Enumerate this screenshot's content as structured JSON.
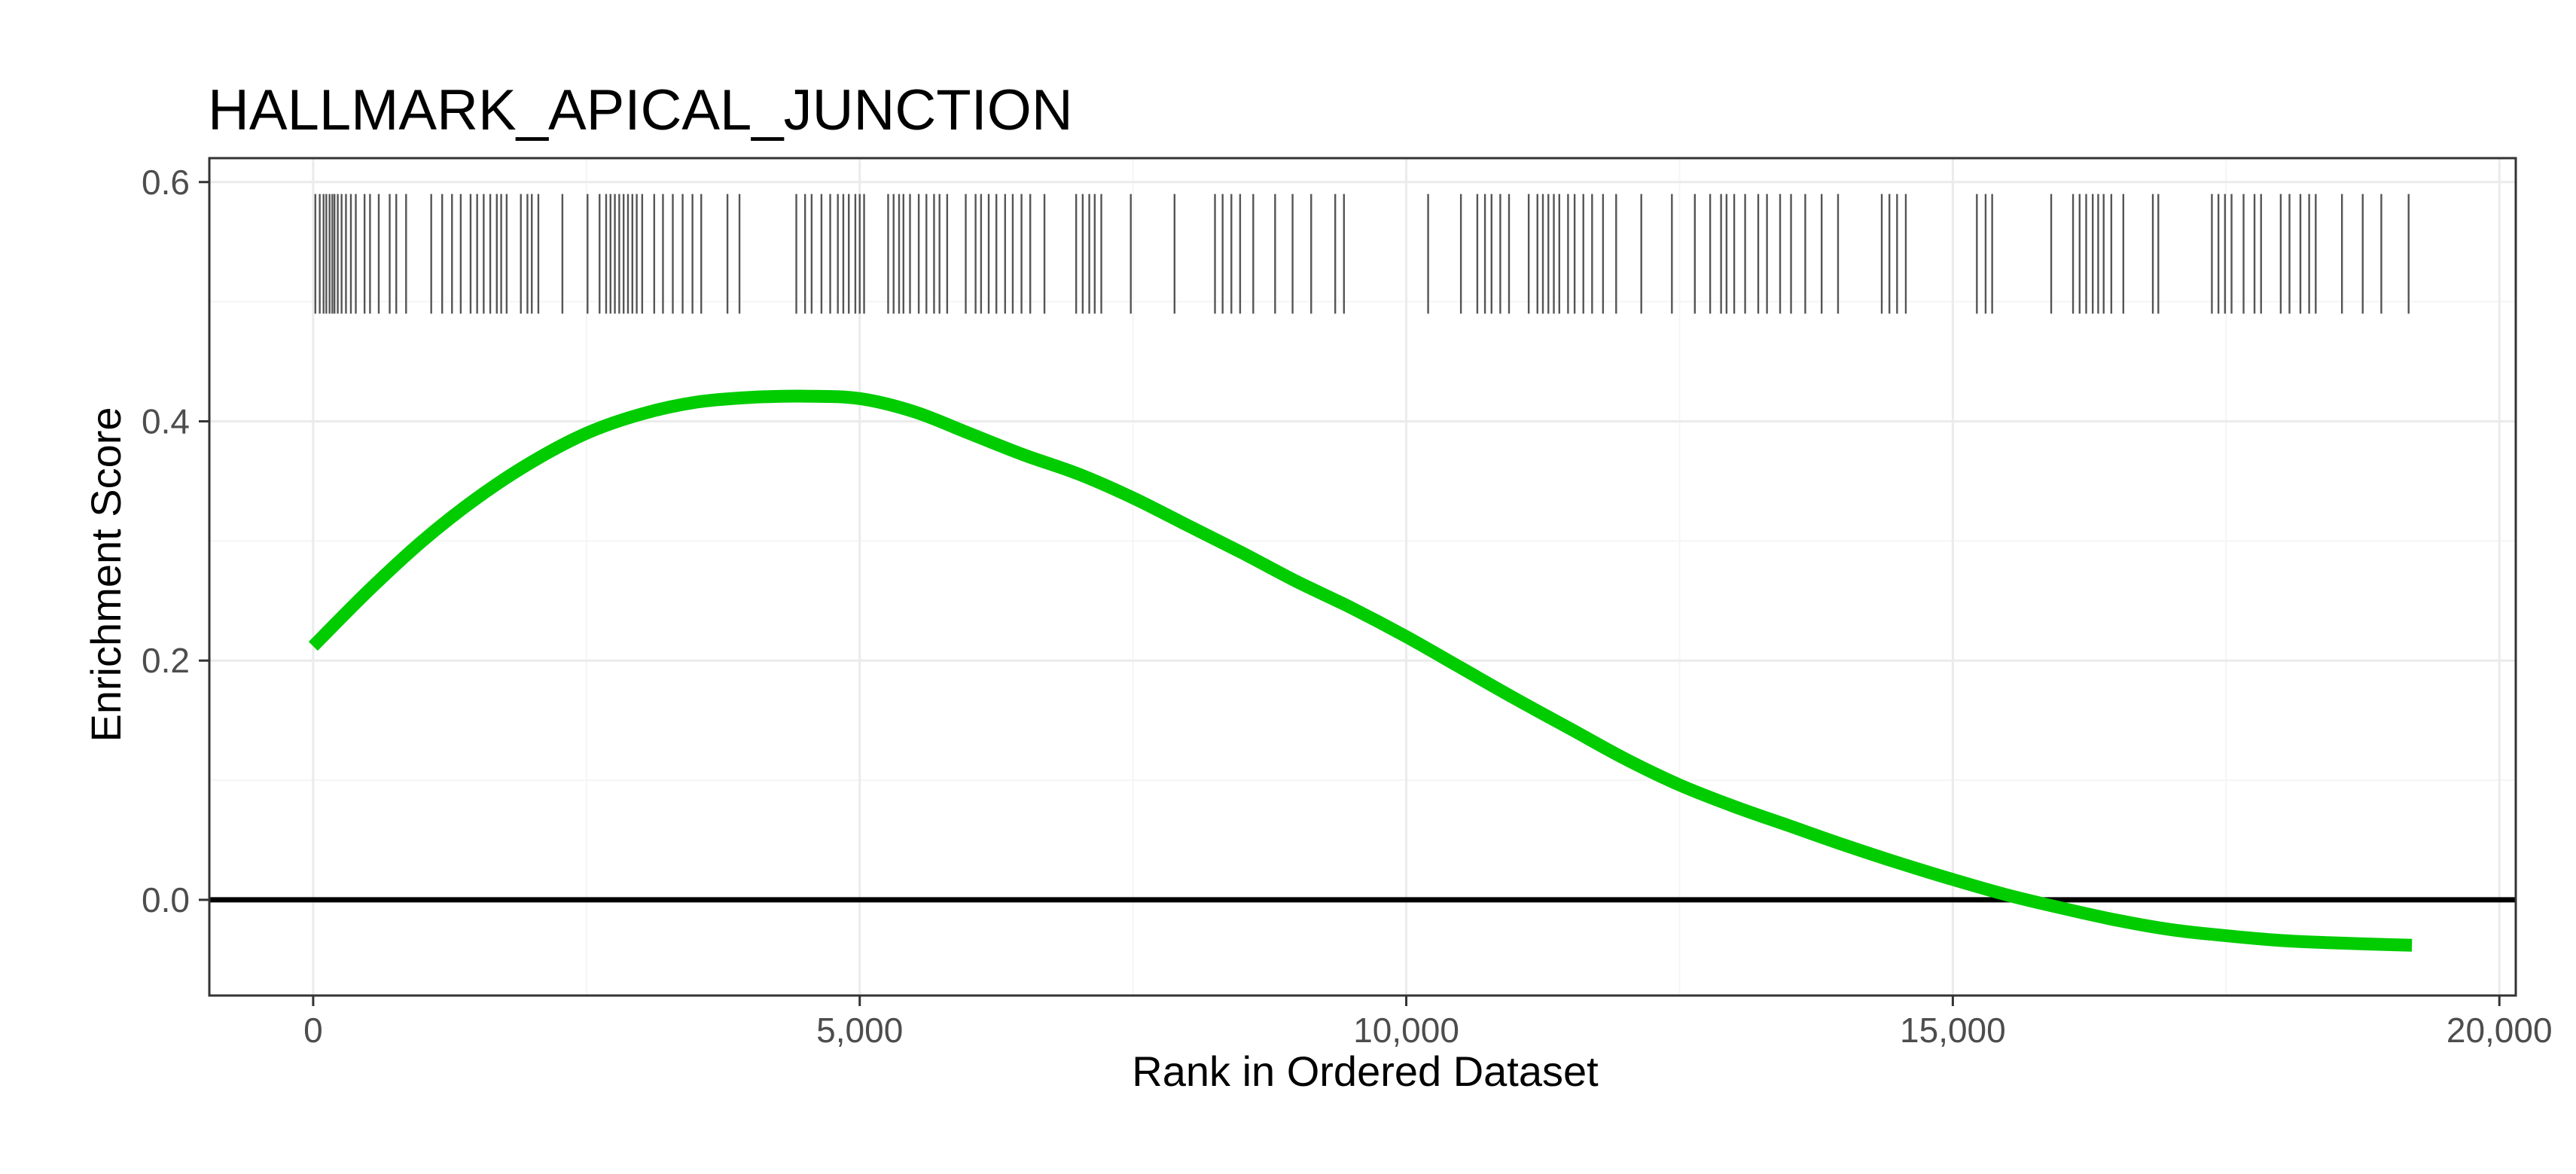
{
  "chart_data": {
    "type": "line",
    "title": "HALLMARK_APICAL_JUNCTION",
    "xlabel": "Rank in Ordered Dataset",
    "ylabel": "Enrichment Score",
    "xlim": [
      -950,
      20150
    ],
    "ylim": [
      -0.08,
      0.62
    ],
    "x_ticks": [
      0,
      5000,
      10000,
      15000,
      20000
    ],
    "x_tick_labels": [
      "0",
      "5,000",
      "10,000",
      "15,000",
      "20,000"
    ],
    "y_ticks": [
      0.0,
      0.2,
      0.4,
      0.6
    ],
    "y_tick_labels": [
      "0.0",
      "0.2",
      "0.4",
      "0.6"
    ],
    "grid": true,
    "theme": "bw",
    "colors": {
      "curve": "#00cc00",
      "hits": "#555555",
      "zero_line": "#000000",
      "grid_major": "#ebebeb",
      "grid_minor": "#f5f5f5",
      "border": "#333333"
    },
    "hline": 0.0,
    "series": [
      {
        "x": [
          0,
          500,
          1000,
          1500,
          2000,
          2500,
          3000,
          3500,
          4000,
          4500,
          5000,
          5500,
          6000,
          6500,
          7000,
          7500,
          8000,
          8500,
          9000,
          9500,
          10000,
          10500,
          11000,
          11500,
          12000,
          12500,
          13000,
          13500,
          14000,
          14500,
          15000,
          15500,
          16000,
          16500,
          17000,
          17500,
          18000,
          18500,
          19200
        ],
        "y": [
          0.212,
          0.258,
          0.3,
          0.336,
          0.366,
          0.39,
          0.406,
          0.416,
          0.42,
          0.421,
          0.419,
          0.408,
          0.39,
          0.372,
          0.356,
          0.336,
          0.313,
          0.29,
          0.266,
          0.244,
          0.22,
          0.194,
          0.168,
          0.143,
          0.118,
          0.096,
          0.078,
          0.062,
          0.046,
          0.031,
          0.017,
          0.004,
          -0.007,
          -0.017,
          -0.025,
          -0.03,
          -0.034,
          -0.036,
          -0.038
        ]
      }
    ],
    "hits": [
      20,
      60,
      95,
      120,
      150,
      175,
      195,
      225,
      260,
      300,
      345,
      390,
      470,
      520,
      600,
      700,
      760,
      850,
      1080,
      1180,
      1270,
      1350,
      1440,
      1500,
      1560,
      1620,
      1680,
      1720,
      1770,
      1900,
      1960,
      2000,
      2060,
      2280,
      2510,
      2620,
      2680,
      2720,
      2760,
      2800,
      2840,
      2880,
      2920,
      2960,
      3010,
      3120,
      3200,
      3290,
      3380,
      3470,
      3550,
      3790,
      3900,
      4420,
      4500,
      4560,
      4650,
      4730,
      4800,
      4850,
      4900,
      4960,
      5000,
      5040,
      5260,
      5310,
      5360,
      5400,
      5460,
      5540,
      5610,
      5680,
      5730,
      5800,
      5970,
      6060,
      6110,
      6180,
      6250,
      6330,
      6400,
      6480,
      6560,
      6690,
      6980,
      7040,
      7100,
      7150,
      7210,
      7480,
      7880,
      8250,
      8320,
      8400,
      8480,
      8600,
      8800,
      8960,
      9130,
      9350,
      9430,
      10200,
      10500,
      10650,
      10720,
      10780,
      10860,
      10940,
      11120,
      11200,
      11250,
      11300,
      11350,
      11400,
      11480,
      11540,
      11620,
      11700,
      11800,
      11920,
      12150,
      12430,
      12640,
      12780,
      12880,
      12930,
      13000,
      13100,
      13220,
      13300,
      13420,
      13520,
      13650,
      13800,
      13950,
      14350,
      14420,
      14490,
      14570,
      15220,
      15300,
      15360,
      15900,
      16100,
      16160,
      16220,
      16280,
      16330,
      16380,
      16450,
      16560,
      16830,
      16880,
      17370,
      17430,
      17490,
      17550,
      17660,
      17760,
      17820,
      18000,
      18080,
      18180,
      18260,
      18320,
      18560,
      18750,
      18920,
      19170
    ]
  }
}
